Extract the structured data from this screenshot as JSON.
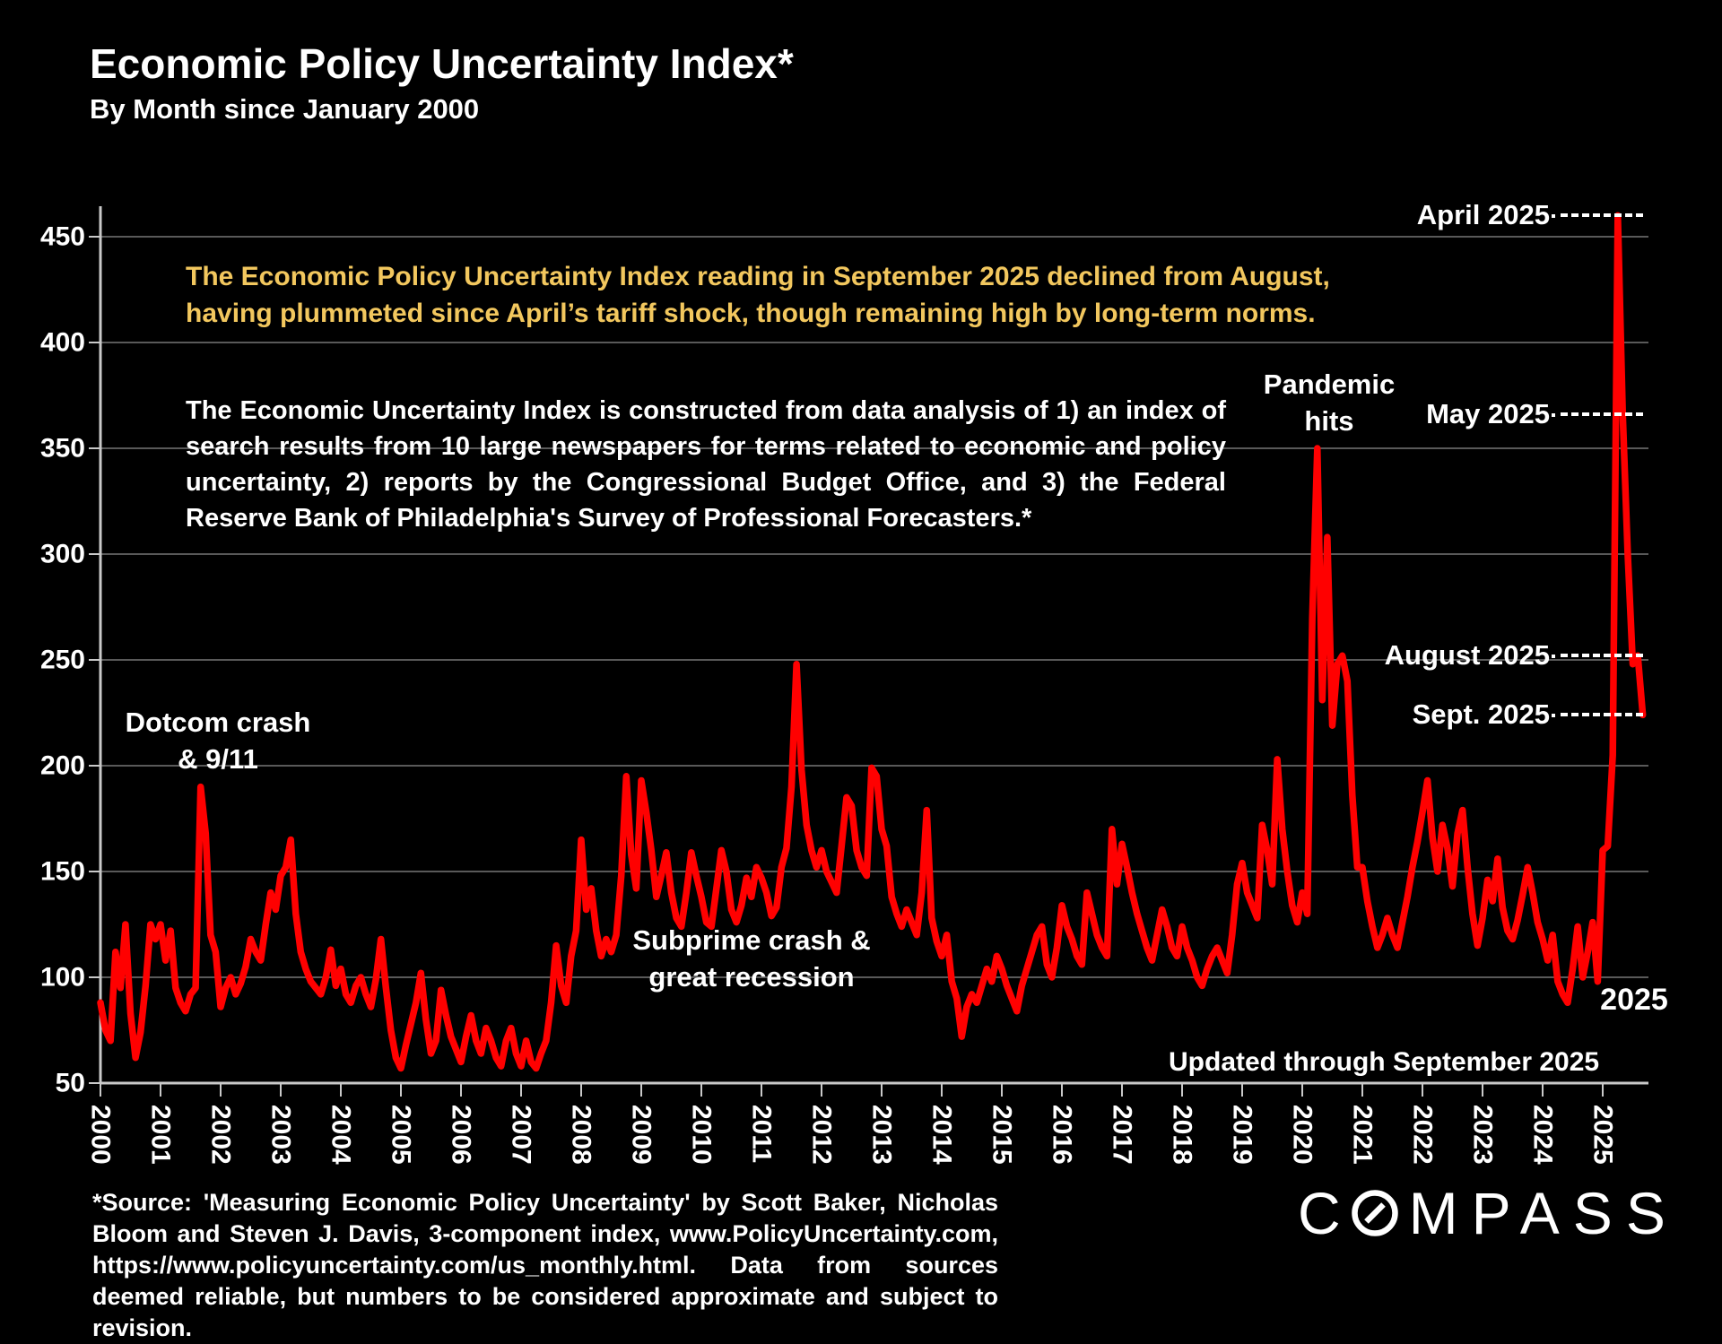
{
  "page": {
    "title": "Economic Policy Uncertainty Index*",
    "subtitle": "By Month since January 2000"
  },
  "highlight": {
    "line1": "The Economic Policy Uncertainty Index reading in September 2025 declined from August,",
    "line2": "having plummeted since April’s tariff shock, though remaining high by long-term norms."
  },
  "description": "The Economic Uncertainty Index is constructed from data analysis of 1) an index of search results from 10 large newspapers for terms related to economic and policy uncertainty, 2) reports by the Congressional Budget Office, and 3) the Federal Reserve Bank of Philadelphia's Survey of Professional Forecasters.*",
  "events": {
    "dotcom": {
      "line1": "Dotcom crash",
      "line2": "& 9/11"
    },
    "subprime": {
      "line1": "Subprime crash &",
      "line2": "great recession"
    },
    "pandemic": {
      "line1": "Pandemic",
      "line2": "hits"
    }
  },
  "callouts": [
    {
      "label": "April 2025",
      "value": 460
    },
    {
      "label": "May 2025",
      "value": 366
    },
    {
      "label": "August 2025",
      "value": 252
    },
    {
      "label": "Sept. 2025",
      "value": 224
    }
  ],
  "labels": {
    "updated": "Updated through September 2025",
    "year_end": "2025"
  },
  "source": "*Source: 'Measuring Economic Policy Uncertainty' by Scott Baker, Nicholas Bloom and Steven J. Davis, 3-component index, www.PolicyUncertainty.com, https://www.policyuncertainty.com/us_monthly.html. Data from sources deemed reliable, but numbers to be considered approximate and subject to revision.",
  "logo": {
    "first": "C",
    "rest": "MPASS"
  },
  "colors": {
    "background": "#000000",
    "line_red": "#ff0000",
    "accent_yellow": "#f2c75e",
    "gridline": "#595959",
    "axis": "#c9c9c9",
    "text": "#ffffff"
  },
  "chart_data": {
    "type": "line",
    "title": "Economic Policy Uncertainty Index*",
    "subtitle": "By Month since January 2000",
    "xlabel": "",
    "ylabel": "",
    "x_unit": "month",
    "start_year": 2000,
    "end": "September 2025",
    "ylim": [
      50,
      470
    ],
    "yticks": [
      50,
      100,
      150,
      200,
      250,
      300,
      350,
      400,
      450
    ],
    "xtick_labels": [
      "2000",
      "2001",
      "2002",
      "2003",
      "2004",
      "2005",
      "2006",
      "2007",
      "2008",
      "2009",
      "2010",
      "2011",
      "2012",
      "2013",
      "2014",
      "2015",
      "2016",
      "2017",
      "2018",
      "2019",
      "2020",
      "2021",
      "2022",
      "2023",
      "2024",
      "2025"
    ],
    "grid": "horizontal",
    "legend": "none",
    "series": [
      {
        "name": "Economic Policy Uncertainty Index (monthly)",
        "values_by_year": {
          "2000": [
            88,
            75,
            70,
            112,
            95,
            125,
            83,
            62,
            74,
            96,
            125,
            118
          ],
          "2001": [
            125,
            108,
            122,
            95,
            88,
            84,
            92,
            95,
            190,
            168,
            120,
            112
          ],
          "2002": [
            86,
            95,
            100,
            92,
            97,
            105,
            118,
            112,
            108,
            125,
            140,
            132
          ],
          "2003": [
            148,
            152,
            165,
            130,
            112,
            104,
            98,
            95,
            92,
            100,
            113,
            96
          ],
          "2004": [
            104,
            92,
            88,
            96,
            100,
            92,
            86,
            99,
            118,
            95,
            75,
            62
          ],
          "2005": [
            57,
            68,
            78,
            88,
            102,
            80,
            64,
            70,
            94,
            82,
            72,
            66
          ],
          "2006": [
            60,
            72,
            82,
            70,
            64,
            76,
            70,
            62,
            58,
            70,
            76,
            64
          ],
          "2007": [
            58,
            70,
            60,
            57,
            64,
            70,
            88,
            115,
            96,
            88,
            110,
            122
          ],
          "2008": [
            165,
            132,
            142,
            122,
            110,
            118,
            112,
            120,
            148,
            195,
            158,
            142
          ],
          "2009": [
            193,
            178,
            160,
            138,
            148,
            159,
            140,
            128,
            124,
            140,
            159,
            148
          ],
          "2010": [
            138,
            126,
            124,
            142,
            160,
            150,
            132,
            126,
            134,
            147,
            138,
            152
          ],
          "2011": [
            147,
            140,
            129,
            133,
            152,
            161,
            190,
            248,
            198,
            172,
            160,
            152
          ],
          "2012": [
            160,
            150,
            145,
            140,
            162,
            185,
            181,
            160,
            152,
            148,
            199,
            195
          ],
          "2013": [
            170,
            162,
            138,
            130,
            124,
            132,
            126,
            120,
            140,
            179,
            128,
            117
          ],
          "2014": [
            110,
            120,
            98,
            90,
            72,
            86,
            92,
            88,
            96,
            104,
            98,
            110
          ],
          "2015": [
            104,
            96,
            90,
            84,
            96,
            104,
            112,
            120,
            124,
            106,
            100,
            114
          ],
          "2016": [
            134,
            124,
            118,
            110,
            106,
            140,
            130,
            120,
            114,
            110,
            170,
            144
          ],
          "2017": [
            163,
            152,
            140,
            130,
            122,
            114,
            108,
            120,
            132,
            124,
            114,
            110
          ],
          "2018": [
            124,
            114,
            108,
            100,
            96,
            104,
            110,
            114,
            108,
            102,
            120,
            144
          ],
          "2019": [
            154,
            140,
            134,
            128,
            172,
            160,
            144,
            203,
            170,
            150,
            134,
            126
          ],
          "2020": [
            140,
            130,
            270,
            350,
            231,
            308,
            219,
            248,
            252,
            240,
            186,
            152
          ],
          "2021": [
            152,
            136,
            124,
            114,
            120,
            128,
            120,
            114,
            126,
            138,
            152,
            164
          ],
          "2022": [
            178,
            193,
            166,
            150,
            172,
            161,
            143,
            168,
            179,
            152,
            130,
            115
          ],
          "2023": [
            128,
            146,
            136,
            156,
            133,
            122,
            118,
            127,
            139,
            152,
            140,
            126
          ],
          "2024": [
            118,
            108,
            120,
            98,
            92,
            88,
            104,
            124,
            100,
            112,
            126,
            98
          ],
          "2025": [
            160,
            162,
            205,
            460,
            366,
            300,
            248,
            252,
            224
          ]
        },
        "annotated_points": {
          "sept_2001": 190,
          "march_2003": 165,
          "aug_2011": 248,
          "pandemic_peak_2020": 350,
          "april_2025": 460,
          "may_2025": 366,
          "august_2025": 252,
          "sept_2025": 224
        }
      }
    ]
  }
}
